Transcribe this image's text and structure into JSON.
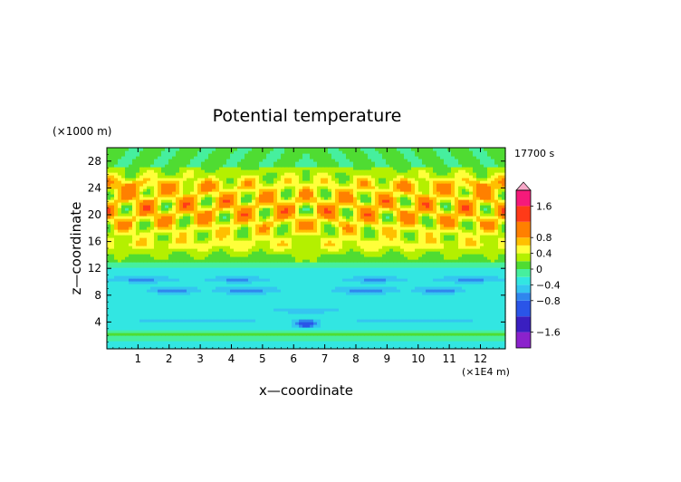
{
  "chart_data": {
    "type": "heatmap",
    "title": "Potential temperature",
    "xlabel": "x—coordinate",
    "ylabel": "z—coordinate",
    "x_unit": "(×1E4 m)",
    "y_unit": "(×1000 m)",
    "time_label": "17700 s",
    "xlim": [
      0,
      12.8
    ],
    "ylim": [
      0,
      30
    ],
    "x_ticks": [
      "1",
      "2",
      "3",
      "4",
      "5",
      "6",
      "7",
      "8",
      "9",
      "10",
      "11",
      "12"
    ],
    "y_ticks": [
      "4",
      "8",
      "12",
      "16",
      "20",
      "24",
      "28"
    ],
    "colorbar": {
      "range": [
        -2.0,
        2.0
      ],
      "ticks": [
        "1.6",
        "0.8",
        "0.4",
        "0",
        "−0.4",
        "−0.8",
        "−1.6"
      ],
      "tick_values": [
        1.6,
        0.8,
        0.4,
        0,
        -0.4,
        -0.8,
        -1.6
      ],
      "levels": [
        -2.0,
        -1.6,
        -1.2,
        -0.8,
        -0.6,
        -0.4,
        -0.2,
        0,
        0.2,
        0.4,
        0.6,
        0.8,
        1.2,
        1.6,
        2.0
      ],
      "colors": [
        "#8b22cc",
        "#3a1fc0",
        "#2a55e8",
        "#2f86ee",
        "#34c6f0",
        "#32e6e2",
        "#46ef9e",
        "#4fdc32",
        "#b4f000",
        "#ffff3a",
        "#ffc000",
        "#ff8000",
        "#ff3a18",
        "#f51a7a"
      ],
      "arrow_color": "#f7a8c8"
    },
    "field_description": {
      "lower_region": "weak negative perturbations (about -0.2 to -0.6) below z = 13",
      "upper_region": "wave-like pattern of positive/negative perturbations (about -0.8 to +1.6) between z = 14 and z = 30"
    }
  }
}
